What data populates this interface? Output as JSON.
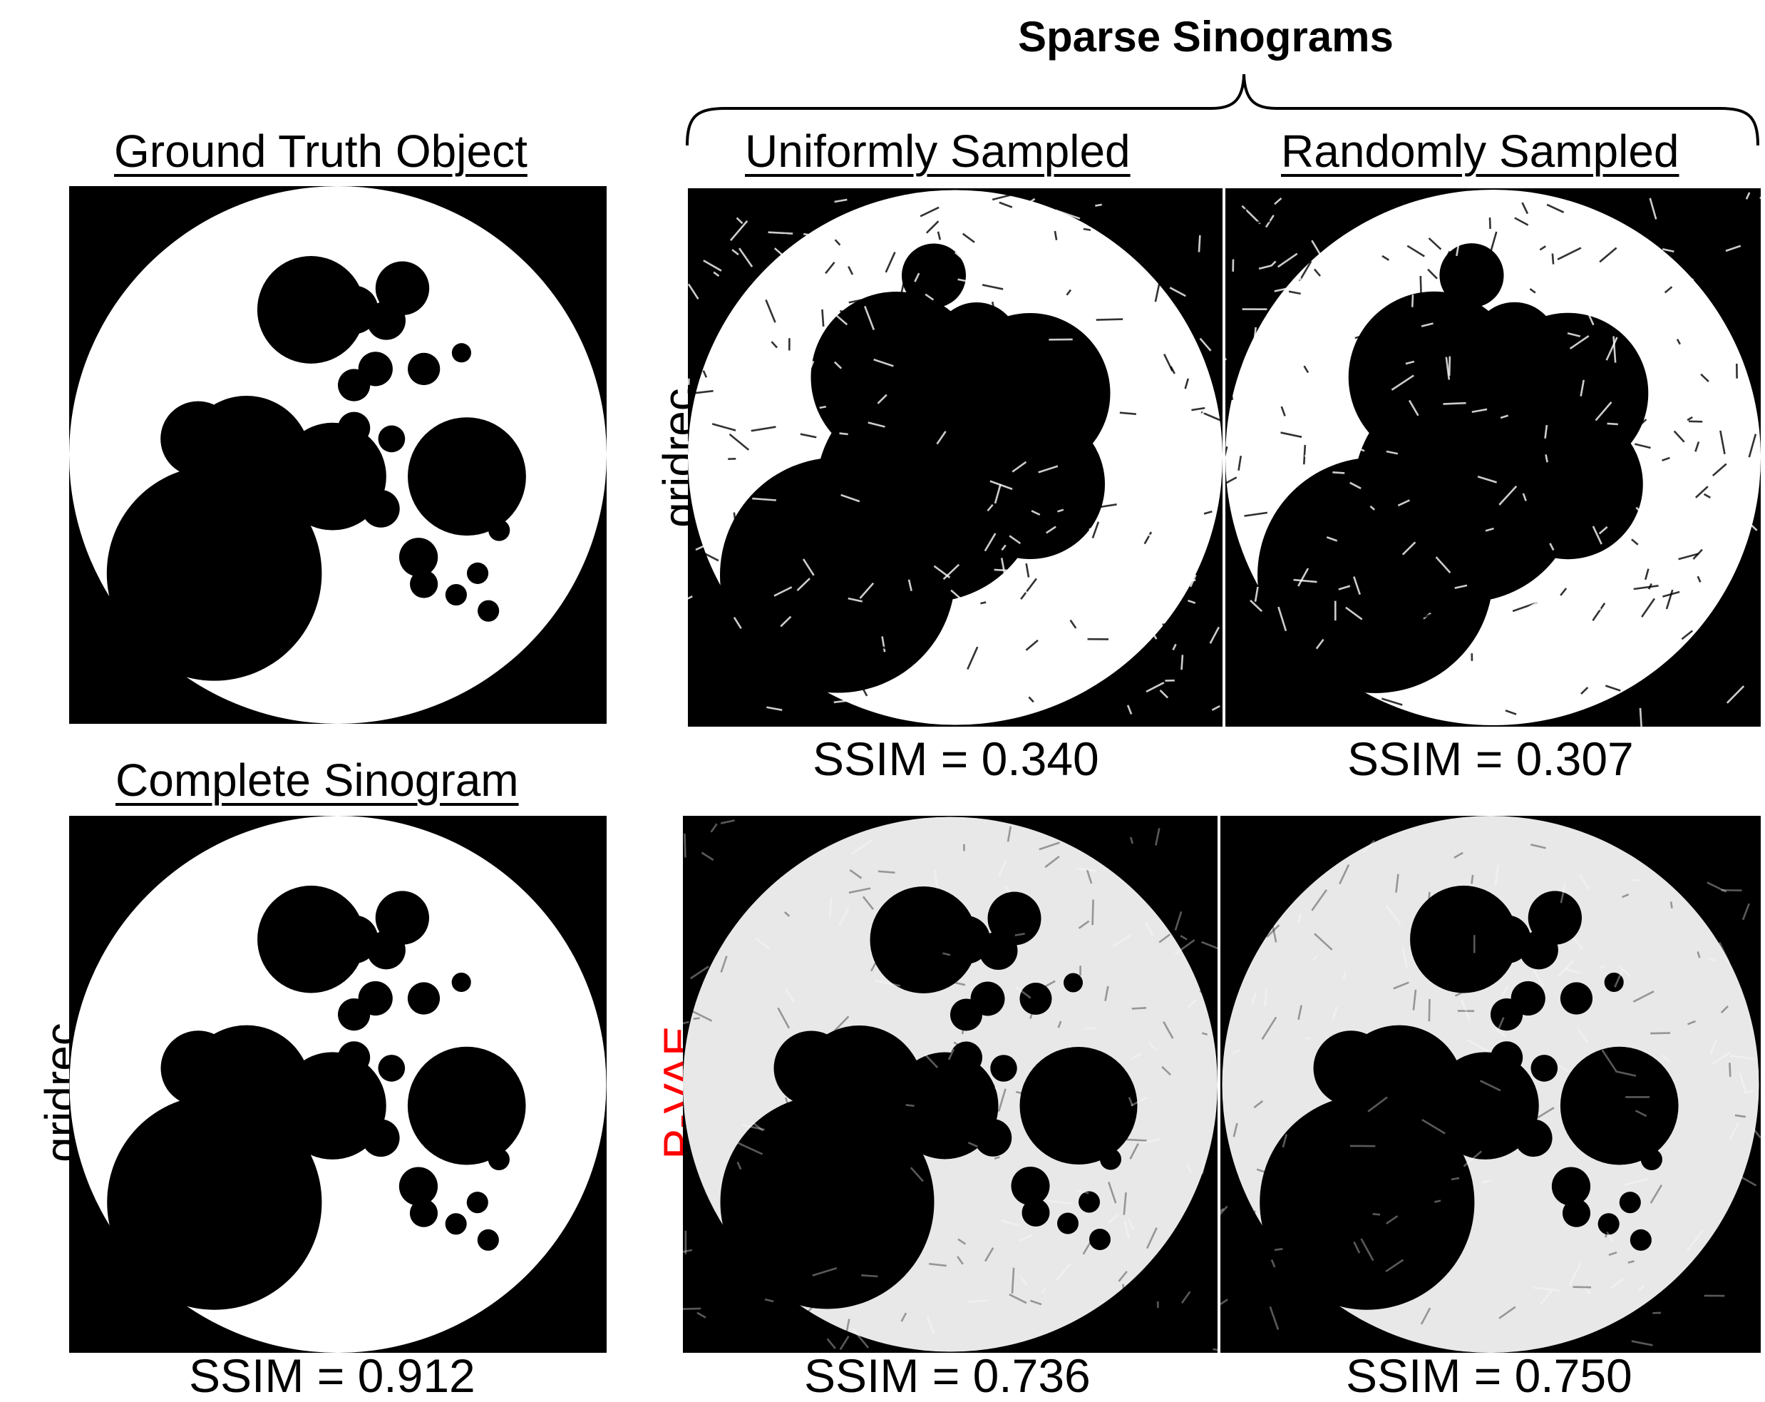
{
  "title": "Sparse Sinograms",
  "columns": {
    "ground_truth": "Ground Truth Object",
    "uniform": "Uniformly Sampled",
    "random": "Randomly Sampled",
    "complete": "Complete Sinogram"
  },
  "row_labels": {
    "gridrec_top": "gridrec",
    "gridrec_bottom": "gridrec",
    "pvae": "P-VAE"
  },
  "colors": {
    "pvae_label": "#ff0000",
    "background": "#000000",
    "object": "#ffffff"
  },
  "ssim": {
    "uniform_gridrec": "SSIM = 0.340",
    "random_gridrec": "SSIM = 0.307",
    "complete_gridrec": "SSIM = 0.912",
    "uniform_pvae": "SSIM = 0.736",
    "random_pvae": "SSIM = 0.750"
  }
}
